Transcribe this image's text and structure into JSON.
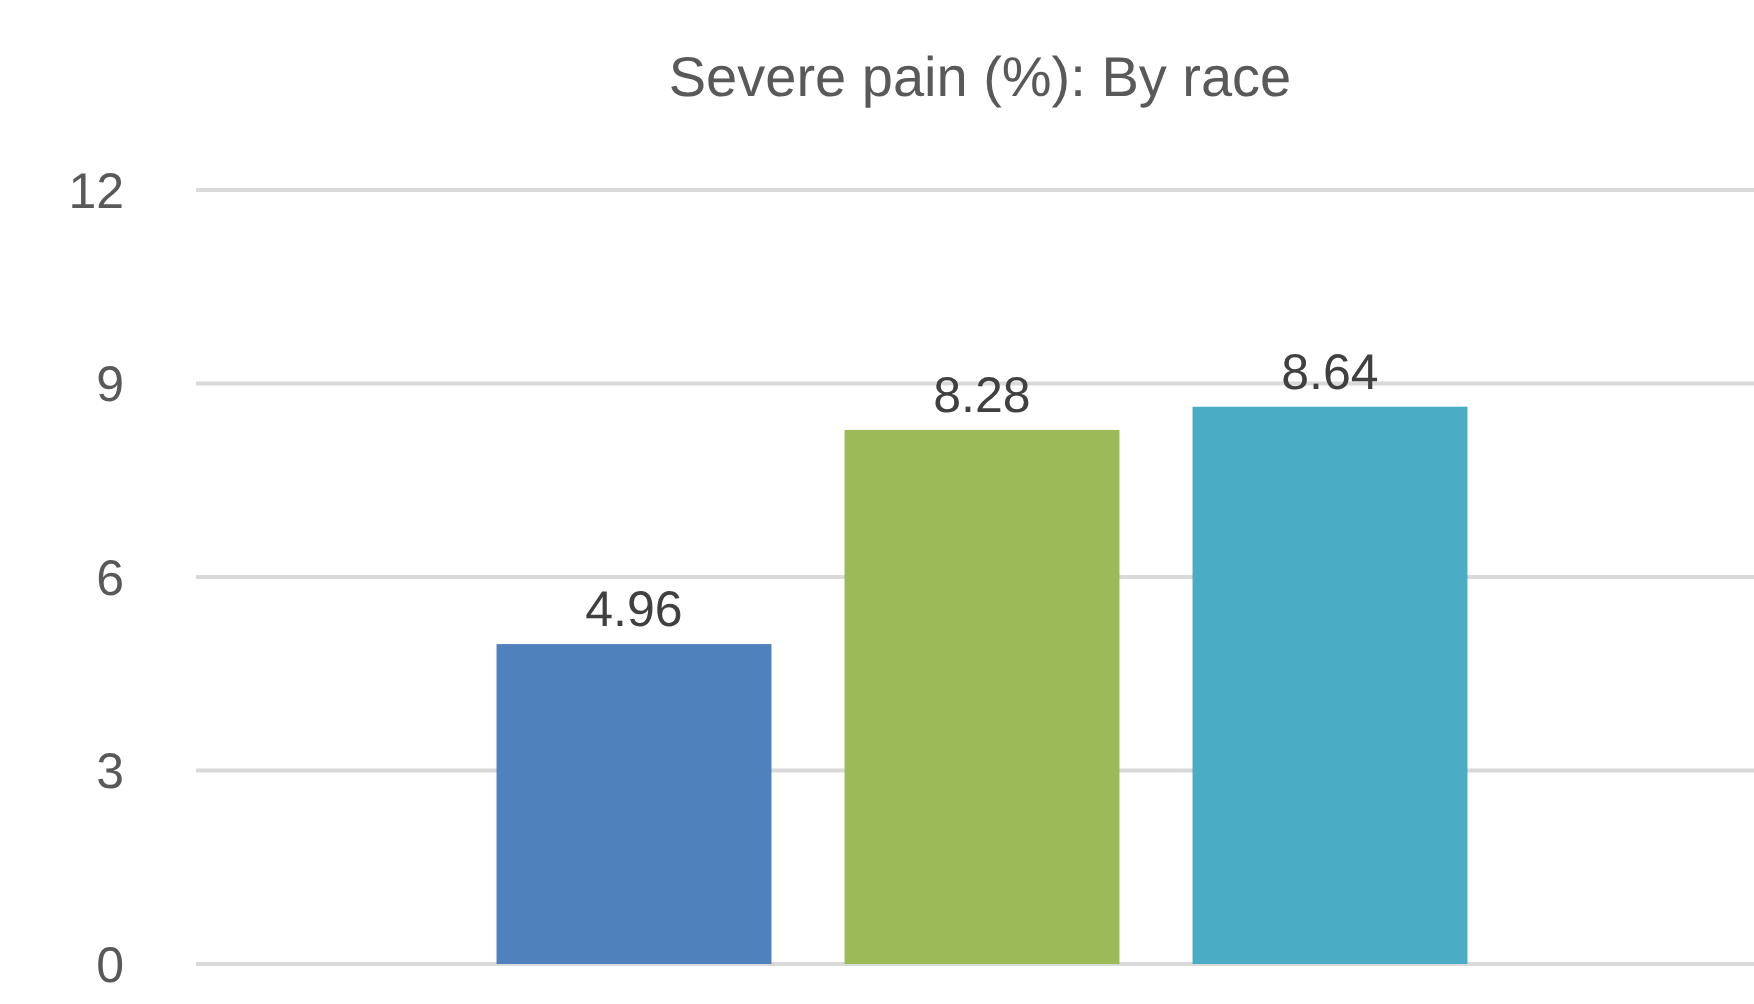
{
  "chart_data": {
    "type": "bar",
    "title": "Severe pain (%): By race",
    "categories": [
      null,
      null,
      null
    ],
    "values": [
      4.96,
      8.28,
      8.64
    ],
    "colors": [
      "#4f81bd",
      "#9bbb59",
      "#4bacc6"
    ],
    "ylim": [
      0,
      12
    ],
    "yticks": [
      0,
      3,
      6,
      9,
      12
    ],
    "grid": "y",
    "data_labels": true
  }
}
